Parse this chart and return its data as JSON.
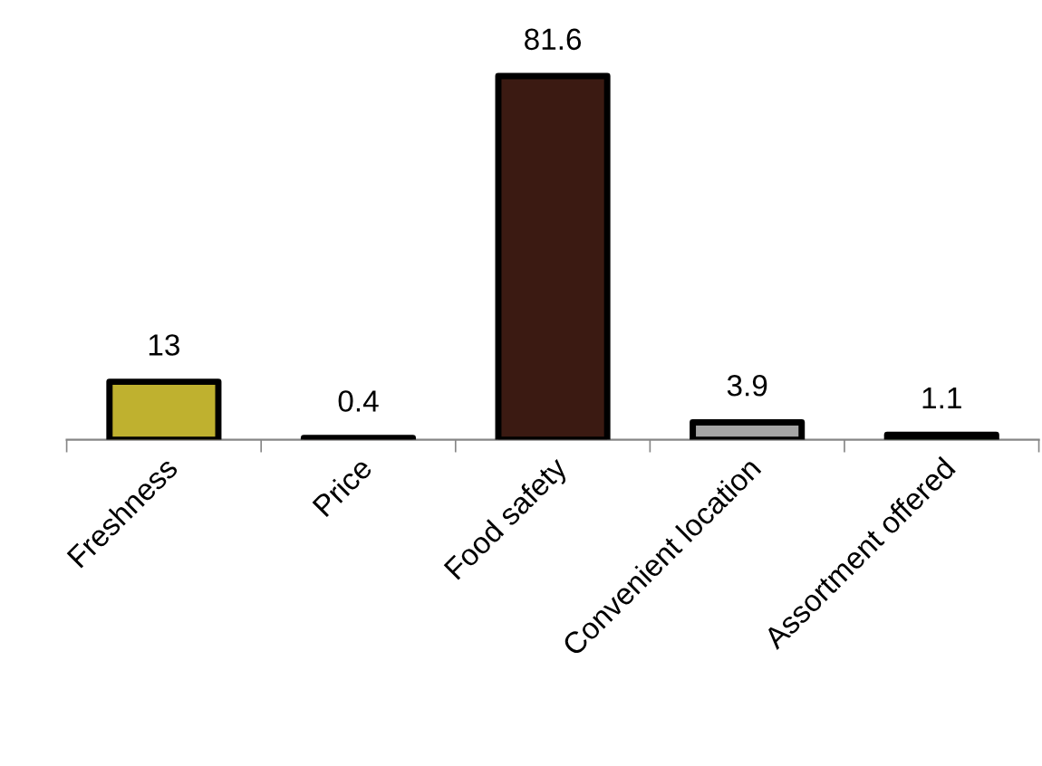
{
  "chart_data": {
    "type": "bar",
    "categories": [
      "Freshness",
      "Price",
      "Food safety",
      "Convenient location",
      "Assortment offered"
    ],
    "values": [
      13,
      0.4,
      81.6,
      3.9,
      1.1
    ],
    "colors": [
      "#bfb12f",
      "#3a2a20",
      "#3b1a12",
      "#a6a6a6",
      "#4e8a3c"
    ],
    "data_labels": true,
    "grid": false,
    "legend": false
  }
}
